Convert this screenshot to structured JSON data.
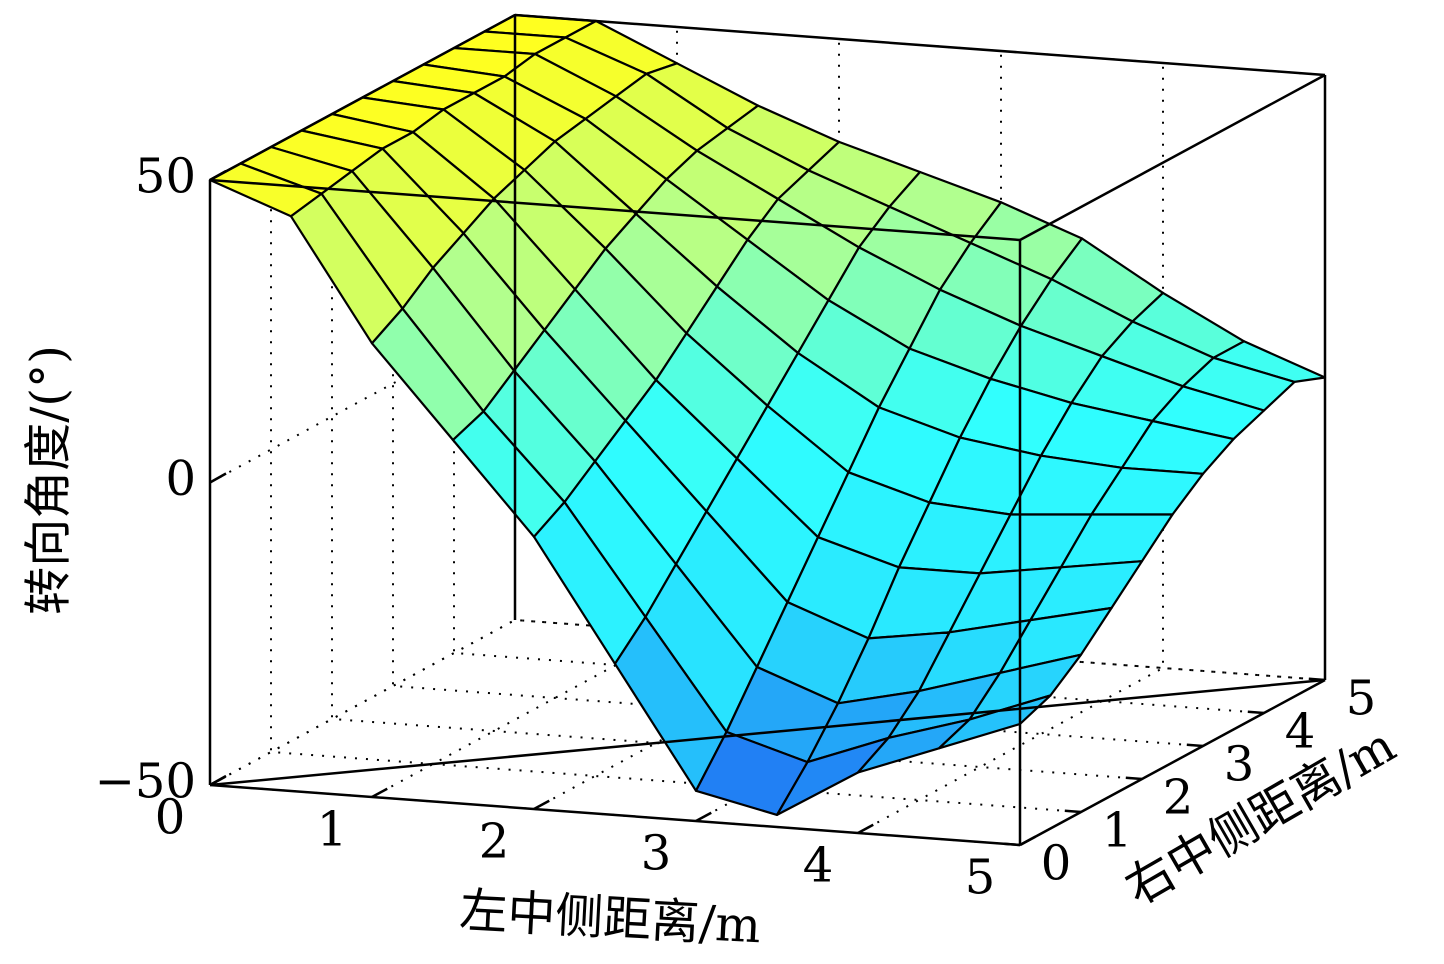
{
  "chart_data": {
    "type": "surface",
    "x_label": "左中侧距离/m",
    "y_label": "右中侧距离/m",
    "z_label": "转向角度/(°)",
    "x": [
      0,
      0.5,
      1,
      1.5,
      2,
      2.5,
      3,
      3.5,
      4,
      4.5,
      5
    ],
    "y": [
      0,
      0.5,
      1,
      1.5,
      2,
      2.5,
      3,
      3.5,
      4,
      4.5,
      5
    ],
    "z": [
      [
        50,
        45,
        25,
        10,
        -5,
        -25,
        -45,
        -48,
        -40,
        -35,
        -30
      ],
      [
        50,
        46,
        28,
        12,
        -2,
        -20,
        -38,
        -42,
        -37,
        -33,
        -28
      ],
      [
        50,
        47,
        32,
        16,
        2,
        -14,
        -30,
        -35,
        -32,
        -28,
        -24
      ],
      [
        50,
        48,
        35,
        20,
        6,
        -8,
        -22,
        -27,
        -25,
        -22,
        -19
      ],
      [
        50,
        48,
        38,
        24,
        10,
        -2,
        -14,
        -18,
        -18,
        -16,
        -14
      ],
      [
        50,
        49,
        40,
        28,
        15,
        4,
        -6,
        -10,
        -11,
        -10,
        -9
      ],
      [
        50,
        49,
        42,
        31,
        20,
        10,
        2,
        -2,
        -4,
        -5,
        -5
      ],
      [
        50,
        49,
        43,
        34,
        25,
        16,
        9,
        5,
        2,
        0,
        -2
      ],
      [
        50,
        50,
        44,
        36,
        29,
        22,
        16,
        11,
        7,
        3,
        0
      ],
      [
        50,
        50,
        45,
        37,
        31,
        26,
        21,
        16,
        10,
        5,
        2
      ],
      [
        50,
        50,
        44,
        38,
        33,
        29,
        25,
        20,
        12,
        5,
        0
      ]
    ],
    "xlim": [
      0,
      5
    ],
    "ylim": [
      0,
      5
    ],
    "zlim": [
      -50,
      50
    ],
    "xticks": [
      0,
      1,
      2,
      3,
      4,
      5
    ],
    "yticks": [
      0,
      1,
      2,
      3,
      4,
      5
    ],
    "zticks": [
      {
        "value": -50,
        "label": "−50"
      },
      0,
      50
    ],
    "colormap": [
      "#1e5af0",
      "#28e6ff",
      "#30ffff",
      "#b0ff90",
      "#ffff20"
    ],
    "edge_color": "#000000",
    "grid": true
  }
}
